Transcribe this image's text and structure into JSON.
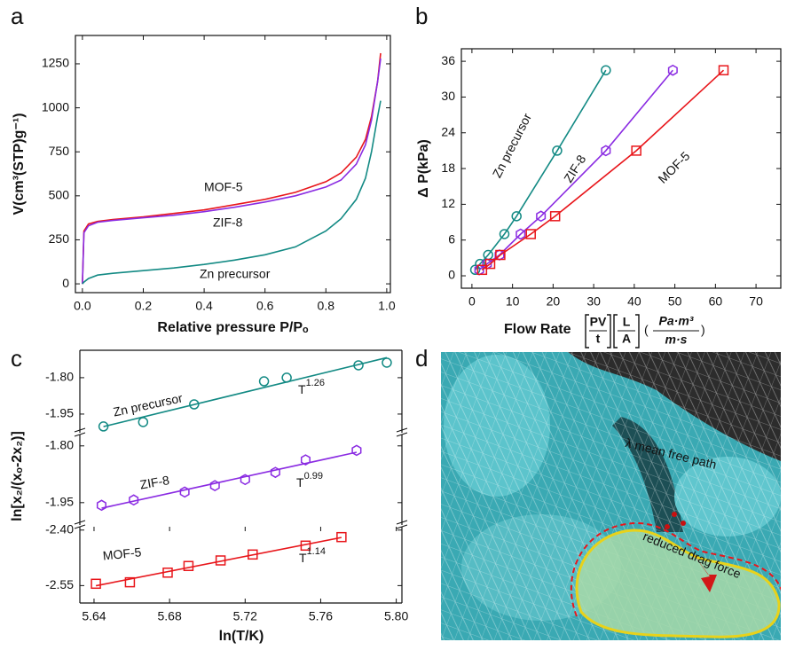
{
  "chart_data": [
    {
      "panel_label": "a",
      "type": "line",
      "x_label": "Relative pressure P/Pₒ",
      "y_label": "V(cm³(STP)g⁻¹)",
      "x": [
        0,
        0.005,
        0.02,
        0.05,
        0.1,
        0.2,
        0.3,
        0.4,
        0.5,
        0.6,
        0.7,
        0.8,
        0.85,
        0.9,
        0.93,
        0.95,
        0.97,
        0.98
      ],
      "series": [
        {
          "name": "MOF-5",
          "color": "#e8161b",
          "values": [
            0,
            300,
            340,
            355,
            365,
            380,
            400,
            420,
            450,
            480,
            520,
            580,
            630,
            720,
            820,
            950,
            1150,
            1310
          ]
        },
        {
          "name": "ZIF-8",
          "color": "#8a2be2",
          "values": [
            0,
            290,
            330,
            350,
            360,
            375,
            390,
            410,
            435,
            465,
            500,
            550,
            590,
            680,
            790,
            930,
            1150,
            1280
          ]
        },
        {
          "name": "Zn precursor",
          "color": "#138a84",
          "values": [
            0,
            10,
            30,
            50,
            60,
            75,
            90,
            110,
            135,
            165,
            210,
            300,
            370,
            480,
            600,
            750,
            950,
            1040
          ]
        }
      ],
      "xlim": [
        -0.023,
        1.012
      ],
      "ylim": [
        -50,
        1411
      ],
      "xticks": [
        {
          "value": 0,
          "label": "0.0"
        },
        {
          "value": 0.2,
          "label": "0.2"
        },
        {
          "value": 0.4,
          "label": "0.4"
        },
        {
          "value": 0.6,
          "label": "0.6"
        },
        {
          "value": 0.8,
          "label": "0.8"
        },
        {
          "value": 1,
          "label": "1.0"
        }
      ],
      "yticks": [
        0,
        250,
        500,
        750,
        1000,
        1250
      ]
    },
    {
      "panel_label": "b",
      "type": "line",
      "markers": true,
      "y_label": "Δ P(kPa)",
      "x_label": "Flow Rate",
      "x_label_fractions": [
        [
          "PV",
          "t"
        ],
        [
          "L",
          "A"
        ]
      ],
      "x_label_unit": [
        "Pa·m³",
        "m·s"
      ],
      "series": [
        {
          "name": "Zn precursor",
          "color": "#138a84",
          "marker": "circle",
          "x": [
            0.8,
            2,
            4,
            8,
            11,
            21,
            33
          ],
          "values": [
            1,
            2,
            3.5,
            7,
            10,
            21,
            34.5
          ]
        },
        {
          "name": "ZIF-8",
          "color": "#8a2be2",
          "marker": "hexagon",
          "x": [
            1.8,
            3.7,
            6.8,
            12,
            17,
            33,
            49.5
          ],
          "values": [
            1,
            2,
            3.5,
            7,
            10,
            21,
            34.5
          ]
        },
        {
          "name": "MOF-5",
          "color": "#e8161b",
          "marker": "square",
          "x": [
            2.5,
            4.5,
            7,
            14.5,
            20.5,
            40.5,
            62
          ],
          "values": [
            1,
            2,
            3.5,
            7,
            10,
            21,
            34.5
          ]
        }
      ],
      "xlim": [
        -2.6,
        76.1
      ],
      "ylim": [
        -2.08,
        38.1
      ],
      "xticks": [
        0,
        10,
        20,
        30,
        40,
        50,
        60,
        70
      ],
      "yticks": [
        0,
        6,
        12,
        18,
        24,
        30,
        36
      ]
    },
    {
      "panel_label": "c",
      "type": "scatter",
      "fit": true,
      "x_label": "ln(T/K)",
      "y_label": "ln[x₂/(xₒ-2x₂)]",
      "power_base": "T",
      "xlim": [
        5.6325,
        5.803
      ],
      "xticks": [
        5.64,
        5.68,
        5.72,
        5.76,
        {
          "value": 5.8,
          "label": "5.80"
        }
      ],
      "panels": [
        {
          "ylim": [
            -2.027,
            -1.687
          ],
          "yticks": [
            {
              "value": -1.8,
              "label": "-1.80"
            },
            -1.95
          ],
          "exponent": "1.26",
          "series": {
            "name": "Zn precursor",
            "color": "#138a84",
            "marker": "circle",
            "x": [
              5.645,
              5.666,
              5.693,
              5.73,
              5.742,
              5.78,
              5.795
            ],
            "values": [
              -2.001,
              -1.983,
              -1.91,
              -1.815,
              -1.8,
              -1.749,
              -1.738
            ]
          }
        },
        {
          "ylim": [
            -2.009,
            -1.77
          ],
          "yticks": [
            {
              "value": -1.8,
              "label": "-1.80"
            },
            -1.95
          ],
          "exponent": "0.99",
          "series": {
            "name": "ZIF-8",
            "color": "#8a2be2",
            "marker": "hexagon",
            "x": [
              5.644,
              5.661,
              5.688,
              5.704,
              5.72,
              5.736,
              5.752,
              5.779
            ],
            "values": [
              -1.957,
              -1.943,
              -1.922,
              -1.905,
              -1.889,
              -1.87,
              -1.837,
              -1.812
            ]
          }
        },
        {
          "ylim": [
            -2.597,
            -2.391
          ],
          "yticks": [
            {
              "value": -2.4,
              "label": "-2.40"
            },
            -2.55
          ],
          "exponent": "1.14",
          "series": {
            "name": "MOF-5",
            "color": "#e8161b",
            "marker": "square",
            "x": [
              5.641,
              5.659,
              5.679,
              5.69,
              5.707,
              5.724,
              5.752,
              5.771
            ],
            "values": [
              -2.545,
              -2.541,
              -2.515,
              -2.497,
              -2.482,
              -2.466,
              -2.442,
              -2.419
            ]
          }
        }
      ]
    }
  ],
  "image_panel": {
    "panel_label": "d",
    "annotations": [
      "λ mean free path",
      "reduced drag force"
    ]
  }
}
